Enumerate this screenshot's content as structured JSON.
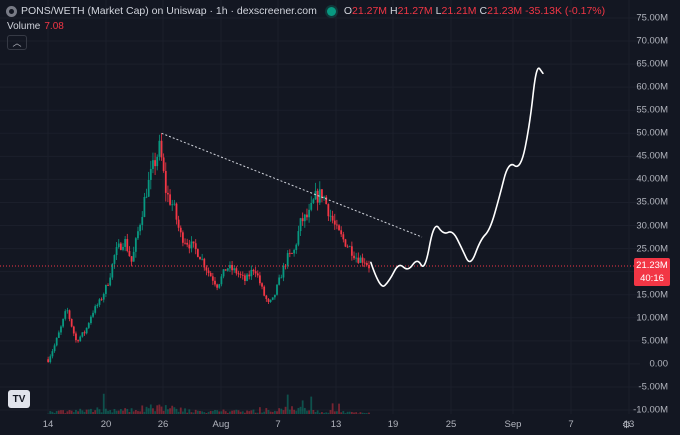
{
  "header": {
    "title": "PONS/WETH (Market Cap) on Uniswap · 1h · dexscreener.com",
    "ohlc": [
      {
        "k": "O",
        "v": "21.27M"
      },
      {
        "k": "H",
        "v": "21.27M"
      },
      {
        "k": "L",
        "v": "21.21M"
      },
      {
        "k": "C",
        "v": "21.23M"
      },
      {
        "k": "",
        "v": "-35.13K (-0.17%)"
      }
    ]
  },
  "volume": {
    "label": "Volume",
    "value": "7.08"
  },
  "collapse_icon": "chevron-up-icon",
  "price_tag": {
    "value": "21.23M",
    "countdown": "40:16"
  },
  "logo": {
    "text": "TV"
  },
  "settings_icon": "gear-icon",
  "colors": {
    "up": "#089981",
    "down": "#f23645",
    "background": "#131722",
    "annotation": "#ffffff"
  },
  "chart_data": {
    "type": "candlestick",
    "y_ticks": [
      "75.00M",
      "70.00M",
      "65.00M",
      "60.00M",
      "55.00M",
      "50.00M",
      "45.00M",
      "40.00M",
      "35.00M",
      "30.00M",
      "25.00M",
      "20.00M",
      "15.00M",
      "10.00M",
      "5.00M",
      "0.00",
      "-5.00M",
      "-10.00M"
    ],
    "x_ticks": [
      "14",
      "20",
      "26",
      "Aug",
      "7",
      "13",
      "19",
      "25",
      "Sep",
      "7",
      "13"
    ],
    "ylim": [
      -10,
      75
    ],
    "current_price": 21.23,
    "price_series": [
      {
        "d": 13.8,
        "v": 1
      },
      {
        "d": 14.5,
        "v": 4
      },
      {
        "d": 15.2,
        "v": 8
      },
      {
        "d": 15.8,
        "v": 12
      },
      {
        "d": 16.8,
        "v": 5
      },
      {
        "d": 17.8,
        "v": 7
      },
      {
        "d": 18.5,
        "v": 11
      },
      {
        "d": 19.5,
        "v": 14
      },
      {
        "d": 20.3,
        "v": 18
      },
      {
        "d": 21.0,
        "v": 24
      },
      {
        "d": 22.0,
        "v": 27
      },
      {
        "d": 22.8,
        "v": 22
      },
      {
        "d": 23.5,
        "v": 29
      },
      {
        "d": 24.3,
        "v": 37
      },
      {
        "d": 25.0,
        "v": 42
      },
      {
        "d": 25.8,
        "v": 47
      },
      {
        "d": 26.5,
        "v": 37
      },
      {
        "d": 27.3,
        "v": 34
      },
      {
        "d": 28.0,
        "v": 28
      },
      {
        "d": 29.0,
        "v": 26
      },
      {
        "d": 30.0,
        "v": 24
      },
      {
        "d": 31.0,
        "v": 20
      },
      {
        "d": 32.0,
        "v": 17
      },
      {
        "d": 33.0,
        "v": 21
      },
      {
        "d": 34.0,
        "v": 20
      },
      {
        "d": 35.0,
        "v": 18
      },
      {
        "d": 36.0,
        "v": 21
      },
      {
        "d": 37.0,
        "v": 15
      },
      {
        "d": 37.5,
        "v": 13
      },
      {
        "d": 38.0,
        "v": 14
      },
      {
        "d": 38.8,
        "v": 19
      },
      {
        "d": 39.5,
        "v": 23
      },
      {
        "d": 40.2,
        "v": 24
      },
      {
        "d": 41.0,
        "v": 31
      },
      {
        "d": 41.8,
        "v": 32
      },
      {
        "d": 42.5,
        "v": 36
      },
      {
        "d": 43.3,
        "v": 37
      },
      {
        "d": 44.0,
        "v": 33
      },
      {
        "d": 44.8,
        "v": 29
      },
      {
        "d": 45.5,
        "v": 27
      },
      {
        "d": 46.3,
        "v": 25
      },
      {
        "d": 47.0,
        "v": 23
      },
      {
        "d": 47.8,
        "v": 22.5
      },
      {
        "d": 48.3,
        "v": 21.2
      }
    ],
    "volume_series": [
      {
        "d": 14,
        "v": 2
      },
      {
        "d": 16,
        "v": 3
      },
      {
        "d": 18,
        "v": 4
      },
      {
        "d": 20,
        "v": 5
      },
      {
        "d": 22,
        "v": 4
      },
      {
        "d": 24,
        "v": 6
      },
      {
        "d": 25,
        "v": 8
      },
      {
        "d": 26,
        "v": 9
      },
      {
        "d": 27,
        "v": 6
      },
      {
        "d": 29,
        "v": 4
      },
      {
        "d": 31,
        "v": 3
      },
      {
        "d": 33,
        "v": 3
      },
      {
        "d": 35,
        "v": 3
      },
      {
        "d": 37,
        "v": 4
      },
      {
        "d": 39,
        "v": 5
      },
      {
        "d": 40,
        "v": 7
      },
      {
        "d": 42,
        "v": 4
      },
      {
        "d": 44,
        "v": 3
      },
      {
        "d": 46,
        "v": 2
      },
      {
        "d": 48,
        "v": 1
      }
    ],
    "trendline": [
      {
        "d": 26,
        "v": 50
      },
      {
        "d": 54,
        "v": 27.5
      }
    ],
    "drawn_projection": [
      {
        "d": 48.5,
        "v": 22
      },
      {
        "d": 49.5,
        "v": 16
      },
      {
        "d": 50.5,
        "v": 18
      },
      {
        "d": 51.5,
        "v": 22
      },
      {
        "d": 52.5,
        "v": 20
      },
      {
        "d": 53.5,
        "v": 23
      },
      {
        "d": 54.3,
        "v": 20
      },
      {
        "d": 55.3,
        "v": 31
      },
      {
        "d": 56.3,
        "v": 28
      },
      {
        "d": 57.3,
        "v": 29
      },
      {
        "d": 58.3,
        "v": 25
      },
      {
        "d": 59.2,
        "v": 21
      },
      {
        "d": 60.3,
        "v": 27
      },
      {
        "d": 61.3,
        "v": 29
      },
      {
        "d": 62.3,
        "v": 36
      },
      {
        "d": 63.3,
        "v": 44
      },
      {
        "d": 64.6,
        "v": 42
      },
      {
        "d": 65.6,
        "v": 52
      },
      {
        "d": 66.3,
        "v": 65
      },
      {
        "d": 67.0,
        "v": 63
      }
    ]
  }
}
